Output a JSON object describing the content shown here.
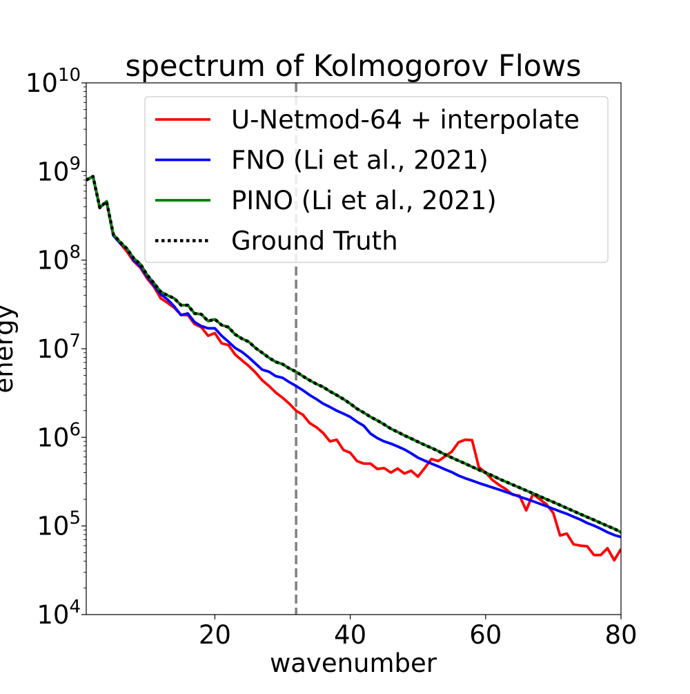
{
  "chart_data": {
    "type": "line",
    "title": "spectrum of Kolmogorov Flows",
    "xlabel": "wavenumber",
    "ylabel": "energy",
    "xlim": [
      1,
      80
    ],
    "ylim": [
      10000,
      10000000000
    ],
    "yscale": "log",
    "xticks": [
      20,
      40,
      60,
      80
    ],
    "xtick_labels": [
      "20",
      "40",
      "60",
      "80"
    ],
    "yticks": [
      4,
      5,
      6,
      7,
      8,
      9,
      10
    ],
    "ytick_base": "10",
    "grid": false,
    "legend_position": "top-right",
    "vline": {
      "x": 32,
      "color": "#808080",
      "style": "dashed"
    },
    "series": [
      {
        "name": "U-Netmod-64 + interpolate",
        "color": "#ff0000",
        "style": "solid",
        "x": [
          1,
          2,
          3,
          4,
          5,
          6,
          7,
          8,
          9,
          10,
          11,
          12,
          13,
          14,
          15,
          16,
          17,
          18,
          19,
          20,
          21,
          22,
          23,
          24,
          25,
          26,
          27,
          28,
          29,
          30,
          31,
          32,
          33,
          34,
          35,
          36,
          37,
          38,
          39,
          40,
          41,
          42,
          43,
          44,
          45,
          46,
          47,
          48,
          49,
          50,
          51,
          52,
          53,
          54,
          55,
          56,
          57,
          58,
          59,
          60,
          61,
          62,
          63,
          64,
          65,
          66,
          67,
          68,
          69,
          70,
          71,
          72,
          73,
          74,
          75,
          76,
          77,
          78,
          79,
          80
        ],
        "y": [
          800000000,
          880000000,
          390000000,
          460000000,
          190000000,
          155000000,
          125000000,
          97000000,
          82000000,
          62000000,
          50000000,
          37000000,
          33000000,
          29000000,
          24000000,
          24000000,
          19000000,
          17500000,
          14000000,
          15000000,
          11500000,
          11000000,
          8600000,
          7400000,
          6400000,
          5400000,
          4400000,
          3800000,
          3200000,
          2800000,
          2400000,
          2000000,
          1800000,
          1450000,
          1300000,
          1120000,
          900000,
          940000,
          720000,
          670000,
          540000,
          505000,
          505000,
          440000,
          450000,
          400000,
          445000,
          390000,
          420000,
          360000,
          450000,
          570000,
          540000,
          610000,
          690000,
          880000,
          940000,
          930000,
          460000,
          400000,
          330000,
          290000,
          260000,
          225000,
          220000,
          150000,
          230000,
          200000,
          175000,
          140000,
          78000,
          82000,
          62000,
          60000,
          59000,
          47000,
          47000,
          56000,
          41000,
          55000
        ]
      },
      {
        "name": "FNO (Li et al., 2021)",
        "color": "#0000ff",
        "style": "solid",
        "x": [
          1,
          2,
          3,
          4,
          5,
          6,
          7,
          8,
          9,
          10,
          11,
          12,
          13,
          14,
          15,
          16,
          17,
          18,
          19,
          20,
          21,
          22,
          23,
          24,
          25,
          26,
          27,
          28,
          29,
          30,
          31,
          32,
          33,
          34,
          35,
          36,
          37,
          38,
          39,
          40,
          41,
          42,
          43,
          44,
          45,
          46,
          47,
          48,
          49,
          50,
          51,
          52,
          53,
          54,
          55,
          56,
          57,
          58,
          59,
          60,
          61,
          62,
          63,
          64,
          65,
          66,
          67,
          68,
          69,
          70,
          71,
          72,
          73,
          74,
          75,
          76,
          77,
          78,
          79,
          80
        ],
        "y": [
          800000000,
          880000000,
          390000000,
          460000000,
          190000000,
          155000000,
          135000000,
          100000000,
          85000000,
          65000000,
          52000000,
          41000000,
          36000000,
          30000000,
          24000000,
          25000000,
          20000000,
          18000000,
          17000000,
          17000000,
          14000000,
          12000000,
          10200000,
          9200000,
          8000000,
          6800000,
          5800000,
          5500000,
          4900000,
          4700000,
          4200000,
          3800000,
          3400000,
          3000000,
          2700000,
          2400000,
          2200000,
          2000000,
          1850000,
          1700000,
          1500000,
          1350000,
          1100000,
          980000,
          900000,
          850000,
          790000,
          730000,
          660000,
          590000,
          545000,
          505000,
          470000,
          435000,
          405000,
          370000,
          345000,
          325000,
          305000,
          288000,
          272000,
          257000,
          242000,
          228000,
          214000,
          202000,
          190000,
          178000,
          167000,
          156000,
          146000,
          137000,
          127000,
          118000,
          108000,
          101000,
          93000,
          85000,
          79000,
          75000
        ]
      },
      {
        "name": "PINO (Li et al., 2021)",
        "color": "#008000",
        "style": "solid",
        "x": [
          1,
          2,
          3,
          4,
          5,
          6,
          7,
          8,
          9,
          10,
          11,
          12,
          13,
          14,
          15,
          16,
          17,
          18,
          19,
          20,
          21,
          22,
          23,
          24,
          25,
          26,
          27,
          28,
          29,
          30,
          31,
          32,
          33,
          34,
          35,
          36,
          37,
          38,
          39,
          40,
          41,
          42,
          43,
          44,
          45,
          46,
          47,
          48,
          49,
          50,
          51,
          52,
          53,
          54,
          55,
          56,
          57,
          58,
          59,
          60,
          61,
          62,
          63,
          64,
          65,
          66,
          67,
          68,
          69,
          70,
          71,
          72,
          73,
          74,
          75,
          76,
          77,
          78,
          79,
          80
        ],
        "y": [
          800000000,
          880000000,
          390000000,
          460000000,
          195000000,
          160000000,
          135000000,
          105000000,
          90000000,
          68000000,
          55000000,
          44000000,
          40000000,
          37000000,
          31000000,
          31000000,
          25000000,
          24500000,
          20500000,
          21500000,
          18500000,
          17500000,
          14500000,
          13000000,
          12000000,
          10200000,
          9000000,
          7900000,
          7100000,
          6700000,
          6000000,
          5500000,
          4900000,
          4400000,
          4000000,
          3700000,
          3300000,
          3000000,
          2700000,
          2400000,
          2100000,
          1900000,
          1700000,
          1550000,
          1400000,
          1250000,
          1150000,
          1050000,
          970000,
          890000,
          820000,
          760000,
          700000,
          640000,
          590000,
          545000,
          505000,
          465000,
          430000,
          400000,
          370000,
          340000,
          315000,
          292000,
          271000,
          251000,
          233000,
          216000,
          200000,
          186000,
          172000,
          159000,
          147000,
          136000,
          126000,
          117000,
          108000,
          100000,
          93000,
          85000
        ]
      },
      {
        "name": "Ground Truth",
        "color": "#000000",
        "style": "dotted",
        "x": [
          1,
          2,
          3,
          4,
          5,
          6,
          7,
          8,
          9,
          10,
          11,
          12,
          13,
          14,
          15,
          16,
          17,
          18,
          19,
          20,
          21,
          22,
          23,
          24,
          25,
          26,
          27,
          28,
          29,
          30,
          31,
          32,
          33,
          34,
          35,
          36,
          37,
          38,
          39,
          40,
          41,
          42,
          43,
          44,
          45,
          46,
          47,
          48,
          49,
          50,
          51,
          52,
          53,
          54,
          55,
          56,
          57,
          58,
          59,
          60,
          61,
          62,
          63,
          64,
          65,
          66,
          67,
          68,
          69,
          70,
          71,
          72,
          73,
          74,
          75,
          76,
          77,
          78,
          79,
          80
        ],
        "y": [
          800000000,
          880000000,
          390000000,
          460000000,
          195000000,
          160000000,
          135000000,
          105000000,
          90000000,
          68000000,
          55000000,
          44000000,
          40000000,
          37000000,
          31000000,
          31000000,
          25000000,
          24500000,
          20500000,
          21500000,
          18500000,
          17500000,
          14500000,
          13000000,
          12000000,
          10200000,
          9000000,
          7900000,
          7100000,
          6700000,
          6000000,
          5500000,
          4900000,
          4400000,
          4000000,
          3700000,
          3300000,
          3000000,
          2700000,
          2400000,
          2100000,
          1900000,
          1700000,
          1550000,
          1400000,
          1250000,
          1150000,
          1050000,
          970000,
          890000,
          820000,
          760000,
          700000,
          640000,
          590000,
          545000,
          505000,
          465000,
          430000,
          400000,
          370000,
          340000,
          315000,
          292000,
          271000,
          251000,
          233000,
          216000,
          200000,
          186000,
          172000,
          159000,
          147000,
          136000,
          126000,
          117000,
          108000,
          100000,
          93000,
          85000
        ]
      }
    ]
  }
}
